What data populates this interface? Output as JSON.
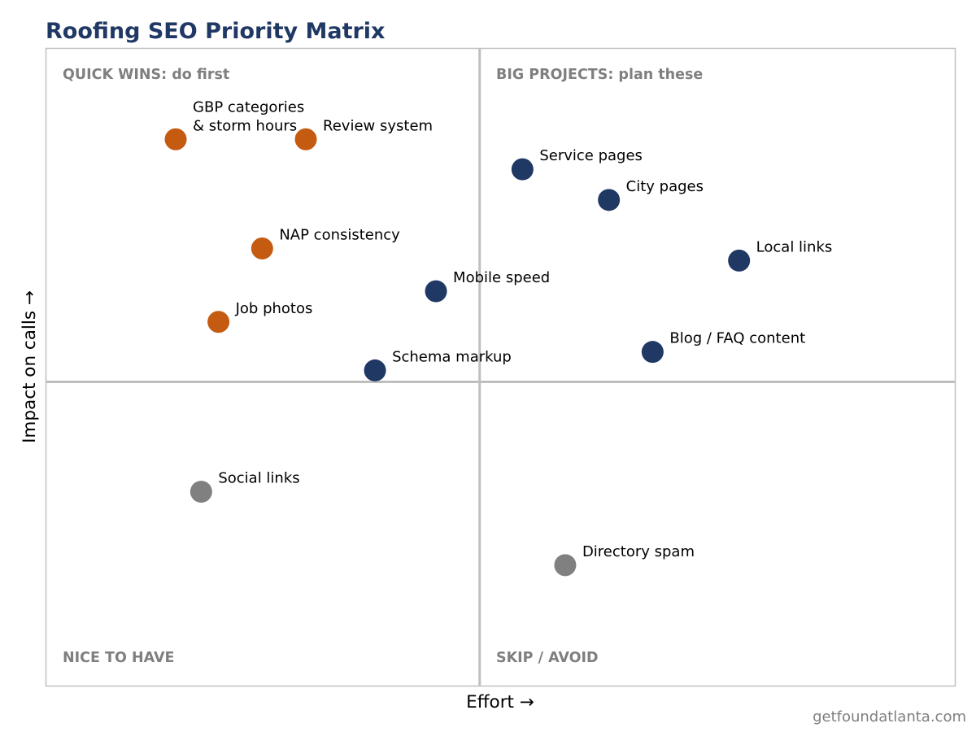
{
  "chart_data": {
    "type": "scatter",
    "title": "Roofing SEO Priority Matrix",
    "xlabel": "Effort  →",
    "ylabel": "Impact on calls  →",
    "xlim": [
      0,
      10
    ],
    "ylim": [
      0,
      10
    ],
    "grid": false,
    "divider_x": 4.77,
    "divider_y": 4.77,
    "quadrants": {
      "top_left": "QUICK WINS: do first",
      "top_right": "BIG PROJECTS: plan these",
      "bottom_left": "NICE TO HAVE",
      "bottom_right": "SKIP / AVOID"
    },
    "colors": {
      "quick_win": "#c55a11",
      "project": "#1f3864",
      "low": "#808080"
    },
    "points": [
      {
        "label": "GBP categories\n& storm hours",
        "x": 1.43,
        "y": 8.57,
        "group": "quick_win"
      },
      {
        "label": "Review system",
        "x": 2.86,
        "y": 8.57,
        "group": "quick_win"
      },
      {
        "label": "NAP consistency",
        "x": 2.38,
        "y": 6.86,
        "group": "quick_win"
      },
      {
        "label": "Job photos",
        "x": 1.9,
        "y": 5.71,
        "group": "quick_win"
      },
      {
        "label": "Service pages",
        "x": 5.24,
        "y": 8.1,
        "group": "project"
      },
      {
        "label": "City pages",
        "x": 6.19,
        "y": 7.62,
        "group": "project"
      },
      {
        "label": "Local links",
        "x": 7.62,
        "y": 6.67,
        "group": "project"
      },
      {
        "label": "Mobile speed",
        "x": 4.29,
        "y": 6.19,
        "group": "project"
      },
      {
        "label": "Blog / FAQ content",
        "x": 6.67,
        "y": 5.24,
        "group": "project"
      },
      {
        "label": "Schema markup",
        "x": 3.62,
        "y": 4.95,
        "group": "project"
      },
      {
        "label": "Social links",
        "x": 1.71,
        "y": 3.05,
        "group": "low"
      },
      {
        "label": "Directory spam",
        "x": 5.71,
        "y": 1.9,
        "group": "low"
      }
    ]
  },
  "footer": "getfoundatlanta.com"
}
